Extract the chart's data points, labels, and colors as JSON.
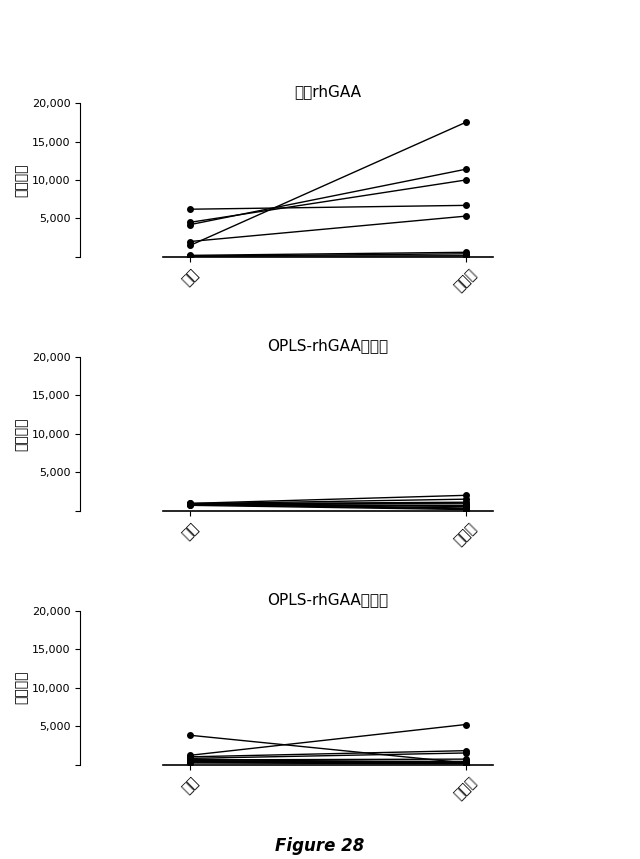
{
  "chart1_title": "遊離rhGAA",
  "chart2_title": "OPLS-rhGAA　一緒",
  "chart3_title": "OPLS-rhGAA　別々",
  "ylabel": "希釈倍率",
  "xtick_labels": [
    "６週",
    "１１週"
  ],
  "figure_caption": "Figure 28",
  "chart1_lines": [
    [
      100,
      150
    ],
    [
      100,
      400
    ],
    [
      200,
      600
    ],
    [
      1500,
      17500
    ],
    [
      4200,
      11400
    ],
    [
      4500,
      10000
    ],
    [
      6200,
      6700
    ],
    [
      2000,
      5300
    ]
  ],
  "chart2_lines": [
    [
      700,
      150
    ],
    [
      800,
      250
    ],
    [
      850,
      550
    ],
    [
      900,
      650
    ],
    [
      950,
      900
    ],
    [
      900,
      1100
    ],
    [
      900,
      1500
    ],
    [
      950,
      2000
    ],
    [
      900,
      350
    ]
  ],
  "chart3_lines": [
    [
      3800,
      200
    ],
    [
      1200,
      5200
    ],
    [
      1000,
      1800
    ],
    [
      800,
      1500
    ],
    [
      700,
      200
    ],
    [
      600,
      700
    ],
    [
      500,
      400
    ],
    [
      400,
      300
    ],
    [
      300,
      200
    ],
    [
      200,
      100
    ]
  ],
  "ylim": [
    0,
    20000
  ],
  "yticks": [
    0,
    5000,
    10000,
    15000,
    20000
  ],
  "background_color": "#ffffff",
  "line_color": "#000000",
  "marker": "o",
  "marker_size": 4,
  "line_width": 1.0
}
